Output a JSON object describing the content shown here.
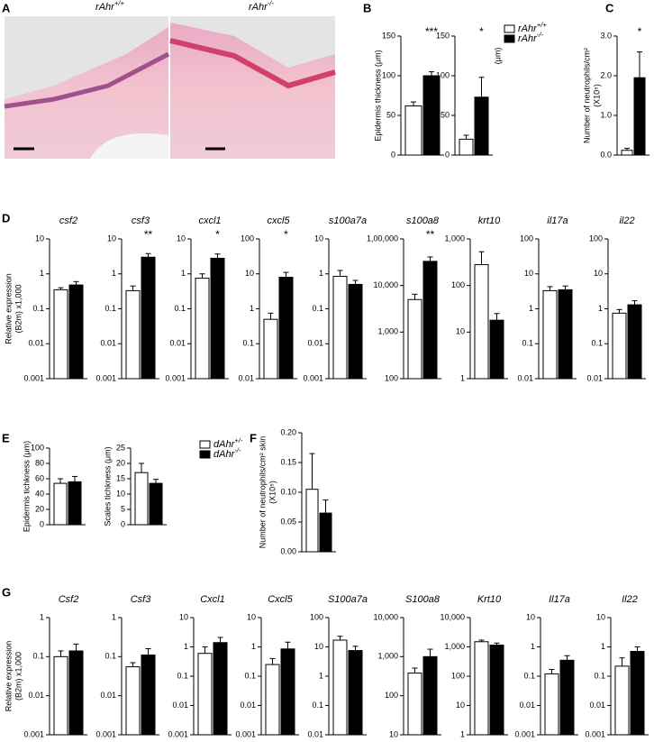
{
  "images": {
    "panel": "A",
    "labels": [
      "rAhr+/+",
      "rAhr-/-"
    ]
  },
  "chart_data": [
    {
      "type": "bar",
      "panel": "B",
      "ylabel": [
        "Epidermis thickness (μm)"
      ],
      "ylim": [
        0,
        150
      ],
      "yticks": [
        0,
        50,
        100,
        150
      ],
      "values": [
        62,
        100
      ],
      "errors": [
        5,
        5
      ],
      "colors": [
        "#ffffff",
        "#000000"
      ],
      "annotation": "***"
    },
    {
      "type": "bar",
      "ylabel": [
        "(μm)"
      ],
      "ylim": [
        0,
        150
      ],
      "yticks": [
        0,
        50,
        100,
        150
      ],
      "values": [
        20,
        73
      ],
      "errors": [
        5,
        25
      ],
      "colors": [
        "#ffffff",
        "#000000"
      ],
      "annotation": "*",
      "legend": [
        "rAhr+/+",
        "rAhr-/-"
      ]
    },
    {
      "type": "bar",
      "panel": "C",
      "ylabel": [
        "Number of neutrophils/cm²",
        "(X10⁵)"
      ],
      "ylim": [
        0,
        3
      ],
      "yticks": [
        {
          "value": 0,
          "label": "0.0"
        },
        {
          "value": 1,
          "label": "1.0"
        },
        {
          "value": 2,
          "label": "2.0"
        },
        {
          "value": 3,
          "label": "3.0"
        }
      ],
      "values": [
        0.12,
        1.95
      ],
      "errors": [
        0.05,
        0.65
      ],
      "colors": [
        "#ffffff",
        "#000000"
      ],
      "annotation": "*"
    },
    {
      "type": "bar",
      "panel": "D",
      "log": true,
      "title": "csf2",
      "ylabel": [
        "Relative expression",
        "(B2m) x1,000"
      ],
      "ylim": [
        0.001,
        10
      ],
      "yticks": [
        0.001,
        0.01,
        0.1,
        1,
        10
      ],
      "values": [
        0.35,
        0.48
      ],
      "errors": [
        0.05,
        0.12
      ],
      "colors": [
        "#ffffff",
        "#000000"
      ]
    },
    {
      "type": "bar",
      "log": true,
      "title": "csf3",
      "ylim": [
        0.001,
        10
      ],
      "yticks": [
        0.001,
        0.01,
        0.1,
        1,
        10
      ],
      "values": [
        0.33,
        3.0
      ],
      "errors": [
        0.12,
        0.8
      ],
      "colors": [
        "#ffffff",
        "#000000"
      ],
      "annotation": "**"
    },
    {
      "type": "bar",
      "log": true,
      "title": "cxcl1",
      "ylim": [
        0.001,
        10
      ],
      "yticks": [
        0.001,
        0.01,
        0.1,
        1,
        10
      ],
      "values": [
        0.75,
        2.8
      ],
      "errors": [
        0.25,
        0.9
      ],
      "colors": [
        "#ffffff",
        "#000000"
      ],
      "annotation": "*"
    },
    {
      "type": "bar",
      "log": true,
      "title": "cxcl5",
      "ylim": [
        0.01,
        100
      ],
      "yticks": [
        0.01,
        0.1,
        1,
        10,
        100
      ],
      "values": [
        0.5,
        8
      ],
      "errors": [
        0.25,
        3
      ],
      "colors": [
        "#ffffff",
        "#000000"
      ],
      "annotation": "*"
    },
    {
      "type": "bar",
      "log": true,
      "title": "s100a7a",
      "ylim": [
        0.001,
        10
      ],
      "yticks": [
        0.001,
        0.01,
        0.1,
        1,
        10
      ],
      "values": [
        0.85,
        0.5
      ],
      "errors": [
        0.4,
        0.15
      ],
      "colors": [
        "#ffffff",
        "#000000"
      ]
    },
    {
      "type": "bar",
      "log": true,
      "title": "s100a8",
      "ylim": [
        100,
        100000
      ],
      "yticks": [
        100,
        {
          "value": 1000,
          "label": "1,000"
        },
        {
          "value": 10000,
          "label": "10,000"
        },
        {
          "value": 100000,
          "label": "1,00,000"
        }
      ],
      "values": [
        5000,
        33000
      ],
      "errors": [
        1500,
        8000
      ],
      "colors": [
        "#ffffff",
        "#000000"
      ],
      "annotation": "**"
    },
    {
      "type": "bar",
      "log": true,
      "title": "krt10",
      "ylim": [
        1,
        1000
      ],
      "yticks": [
        1,
        10,
        100,
        {
          "value": 1000,
          "label": "1,000"
        }
      ],
      "values": [
        280,
        18
      ],
      "errors": [
        250,
        7
      ],
      "colors": [
        "#ffffff",
        "#000000"
      ]
    },
    {
      "type": "bar",
      "log": true,
      "title": "il17a",
      "ylim": [
        0.01,
        100
      ],
      "yticks": [
        0.01,
        0.1,
        1,
        10,
        100
      ],
      "values": [
        3.3,
        3.5
      ],
      "errors": [
        1,
        1
      ],
      "colors": [
        "#ffffff",
        "#000000"
      ]
    },
    {
      "type": "bar",
      "log": true,
      "title": "il22",
      "ylim": [
        0.01,
        100
      ],
      "yticks": [
        0.01,
        0.1,
        1,
        10,
        100
      ],
      "values": [
        0.75,
        1.3
      ],
      "errors": [
        0.2,
        0.4
      ],
      "colors": [
        "#ffffff",
        "#000000"
      ]
    },
    {
      "type": "bar",
      "panel": "E",
      "ylabel": [
        "Epidermis tichkness (μm)"
      ],
      "ylim": [
        0,
        100
      ],
      "yticks": [
        0,
        20,
        40,
        60,
        80,
        100
      ],
      "values": [
        54,
        56
      ],
      "errors": [
        6,
        7
      ],
      "colors": [
        "#ffffff",
        "#000000"
      ]
    },
    {
      "type": "bar",
      "ylabel": [
        "Scales tichkness (μm)"
      ],
      "ylim": [
        0,
        25
      ],
      "yticks": [
        0,
        5,
        10,
        15,
        20,
        25
      ],
      "values": [
        17,
        13.5
      ],
      "errors": [
        3,
        1.3
      ],
      "colors": [
        "#ffffff",
        "#000000"
      ],
      "legend": [
        "dAhr+/-",
        "dAhr-/-"
      ]
    },
    {
      "type": "bar",
      "panel": "F",
      "ylabel": [
        "Number of neutrophils/cm² skin",
        "(X10⁵)"
      ],
      "ylim": [
        0,
        0.2
      ],
      "yticks": [
        {
          "value": 0,
          "label": "0.00"
        },
        {
          "value": 0.05,
          "label": "0.05"
        },
        {
          "value": 0.1,
          "label": "0.10"
        },
        {
          "value": 0.15,
          "label": "0.15"
        },
        {
          "value": 0.2,
          "label": "0.20"
        }
      ],
      "values": [
        0.105,
        0.065
      ],
      "errors": [
        0.06,
        0.022
      ],
      "colors": [
        "#ffffff",
        "#000000"
      ]
    },
    {
      "type": "bar",
      "panel": "G",
      "log": true,
      "title": "Csf2",
      "ylabel": [
        "Relative expression",
        "(B2m) x1,000"
      ],
      "ylim": [
        0.001,
        1
      ],
      "yticks": [
        0.001,
        0.01,
        0.1,
        1
      ],
      "values": [
        0.1,
        0.14
      ],
      "errors": [
        0.04,
        0.07
      ],
      "colors": [
        "#ffffff",
        "#000000"
      ]
    },
    {
      "type": "bar",
      "log": true,
      "title": "Csf3",
      "ylim": [
        0.001,
        1
      ],
      "yticks": [
        0.001,
        0.01,
        0.1,
        1
      ],
      "values": [
        0.055,
        0.11
      ],
      "errors": [
        0.015,
        0.05
      ],
      "colors": [
        "#ffffff",
        "#000000"
      ]
    },
    {
      "type": "bar",
      "log": true,
      "title": "Cxcl1",
      "ylim": [
        0.001,
        10
      ],
      "yticks": [
        0.001,
        0.01,
        0.1,
        1,
        10
      ],
      "values": [
        0.6,
        1.4
      ],
      "errors": [
        0.4,
        0.7
      ],
      "colors": [
        "#ffffff",
        "#000000"
      ]
    },
    {
      "type": "bar",
      "log": true,
      "title": "Cxcl5",
      "ylim": [
        0.001,
        10
      ],
      "yticks": [
        0.001,
        0.01,
        0.1,
        1,
        10
      ],
      "values": [
        0.25,
        0.85
      ],
      "errors": [
        0.15,
        0.6
      ],
      "colors": [
        "#ffffff",
        "#000000"
      ]
    },
    {
      "type": "bar",
      "log": true,
      "title": "S100a7a",
      "ylim": [
        0.01,
        100
      ],
      "yticks": [
        0.01,
        0.1,
        1,
        10,
        100
      ],
      "values": [
        17,
        7.5
      ],
      "errors": [
        6,
        3
      ],
      "colors": [
        "#ffffff",
        "#000000"
      ]
    },
    {
      "type": "bar",
      "log": true,
      "title": "S100a8",
      "ylim": [
        10,
        10000
      ],
      "yticks": [
        10,
        100,
        {
          "value": 1000,
          "label": "1,000"
        },
        {
          "value": 10000,
          "label": "10,000"
        }
      ],
      "values": [
        380,
        1000
      ],
      "errors": [
        130,
        550
      ],
      "colors": [
        "#ffffff",
        "#000000"
      ]
    },
    {
      "type": "bar",
      "log": true,
      "title": "Krt10",
      "ylim": [
        1,
        10000
      ],
      "yticks": [
        1,
        10,
        100,
        {
          "value": 1000,
          "label": "1,000"
        },
        {
          "value": 10000,
          "label": "10,000"
        }
      ],
      "values": [
        1500,
        1150
      ],
      "errors": [
        200,
        200
      ],
      "colors": [
        "#ffffff",
        "#000000"
      ]
    },
    {
      "type": "bar",
      "log": true,
      "title": "Il17a",
      "ylim": [
        0.001,
        10
      ],
      "yticks": [
        0.001,
        0.01,
        0.1,
        1,
        10
      ],
      "values": [
        0.12,
        0.35
      ],
      "errors": [
        0.05,
        0.15
      ],
      "colors": [
        "#ffffff",
        "#000000"
      ]
    },
    {
      "type": "bar",
      "log": true,
      "title": "Il22",
      "ylim": [
        0.001,
        10
      ],
      "yticks": [
        0.001,
        0.01,
        0.1,
        1,
        10
      ],
      "values": [
        0.22,
        0.7
      ],
      "errors": [
        0.2,
        0.3
      ],
      "colors": [
        "#ffffff",
        "#000000"
      ]
    }
  ]
}
